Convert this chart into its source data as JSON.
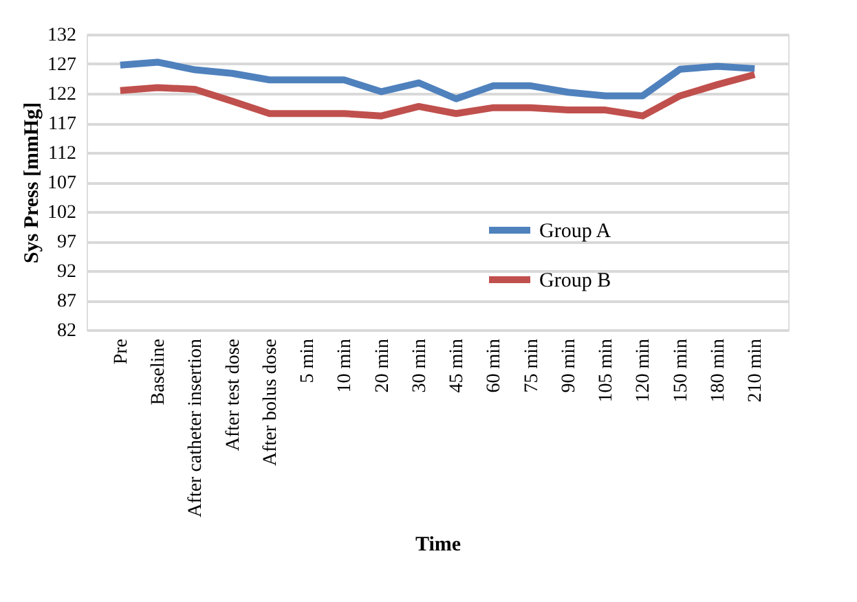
{
  "chart_data": {
    "type": "line",
    "xlabel": "Time",
    "ylabel": "Sys Press [mmHg]",
    "categories": [
      "Pre",
      "Baseline",
      "After catheter insertion",
      "After test dose",
      "After bolus dose",
      "5 min",
      "10 min",
      "20 min",
      "30 min",
      "45 min",
      "60 min",
      "75 min",
      "90 min",
      "105 min",
      "120 min",
      "150 min",
      "180 min",
      "210 min"
    ],
    "series": [
      {
        "name": "Group A",
        "color": "#4f81bd",
        "values": [
          126.8,
          127.3,
          126.0,
          125.4,
          124.3,
          124.3,
          124.3,
          122.3,
          123.8,
          121.1,
          123.3,
          123.3,
          122.2,
          121.6,
          121.6,
          126.1,
          126.6,
          126.2
        ]
      },
      {
        "name": "Group B",
        "color": "#c0504d",
        "values": [
          122.5,
          123.0,
          122.7,
          120.7,
          118.6,
          118.6,
          118.6,
          118.2,
          119.8,
          118.6,
          119.6,
          119.6,
          119.2,
          119.2,
          118.2,
          121.6,
          123.5,
          125.2
        ]
      }
    ],
    "ylim": [
      82,
      132
    ],
    "yticks": [
      82,
      87,
      92,
      97,
      102,
      107,
      112,
      117,
      122,
      127,
      132
    ],
    "grid": "y",
    "legend": "right",
    "marker": "none",
    "line_style": "solid"
  }
}
